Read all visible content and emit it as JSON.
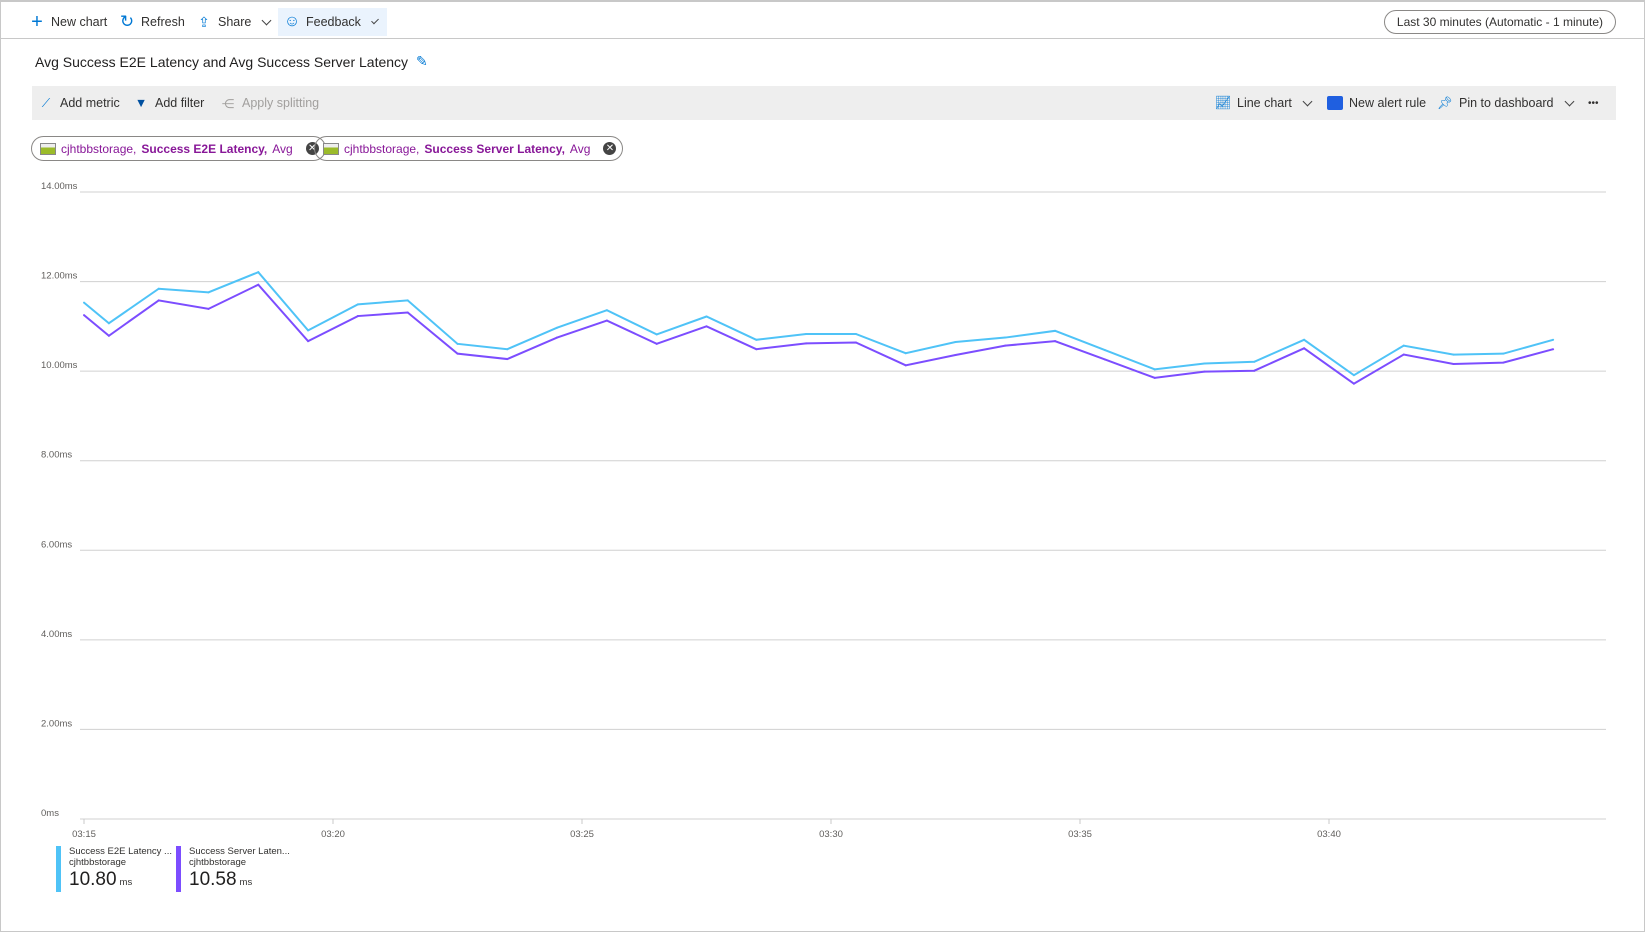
{
  "toolbar": {
    "new_chart": "New chart",
    "refresh": "Refresh",
    "share": "Share",
    "feedback": "Feedback",
    "time_range": "Last 30 minutes (Automatic - 1 minute)"
  },
  "chart_title": "Avg Success E2E Latency and Avg Success Server Latency",
  "command_bar": {
    "add_metric": "Add metric",
    "add_filter": "Add filter",
    "apply_splitting": "Apply splitting",
    "line_chart": "Line chart",
    "new_alert_rule": "New alert rule",
    "pin_to_dashboard": "Pin to dashboard",
    "more": "•••"
  },
  "metric_pills": [
    {
      "resource": "cjhtbbstorage,",
      "metric": "Success E2E Latency,",
      "agg": "Avg"
    },
    {
      "resource": "cjhtbbstorage,",
      "metric": "Success Server Latency,",
      "agg": "Avg"
    }
  ],
  "legend": [
    {
      "name": "Success E2E Latency ...",
      "resource": "cjhtbbstorage",
      "value": "10.80",
      "unit": "ms",
      "color": "#4fc3f7"
    },
    {
      "name": "Success Server Laten...",
      "resource": "cjhtbbstorage",
      "value": "10.58",
      "unit": "ms",
      "color": "#7c4dff"
    }
  ],
  "chart_data": {
    "type": "line",
    "title": "",
    "xlabel": "",
    "ylabel": "",
    "ylim": [
      0,
      14
    ],
    "yticks": [
      "0ms",
      "2.00ms",
      "4.00ms",
      "6.00ms",
      "8.00ms",
      "10.00ms",
      "12.00ms",
      "14.00ms"
    ],
    "xticks": [
      "03:15",
      "03:20",
      "03:25",
      "03:30",
      "03:35",
      "03:40"
    ],
    "grid": true,
    "x": [
      "03:15:00",
      "03:15:30",
      "03:16:30",
      "03:17:30",
      "03:18:30",
      "03:19:30",
      "03:20:30",
      "03:21:30",
      "03:22:30",
      "03:23:30",
      "03:24:30",
      "03:25:30",
      "03:26:30",
      "03:27:30",
      "03:28:30",
      "03:29:30",
      "03:30:30",
      "03:31:30",
      "03:32:30",
      "03:33:30",
      "03:34:30",
      "03:35:30",
      "03:36:30",
      "03:37:30",
      "03:38:30",
      "03:39:30",
      "03:40:30",
      "03:41:30",
      "03:42:30",
      "03:43:30",
      "03:44:30"
    ],
    "series": [
      {
        "name": "Success E2E Latency",
        "color": "#4fc3f7",
        "values": [
          11.53,
          11.07,
          11.84,
          11.76,
          12.21,
          10.91,
          11.49,
          11.58,
          10.61,
          10.49,
          10.97,
          11.36,
          10.82,
          11.22,
          10.7,
          10.83,
          10.83,
          10.4,
          10.65,
          10.75,
          10.9,
          10.47,
          10.04,
          10.17,
          10.21,
          10.7,
          9.91,
          10.57,
          10.37,
          10.39,
          10.7
        ]
      },
      {
        "name": "Success Server Latency",
        "color": "#7c4dff",
        "values": [
          11.25,
          10.79,
          11.58,
          11.39,
          11.93,
          10.67,
          11.23,
          11.31,
          10.39,
          10.27,
          10.75,
          11.13,
          10.61,
          11.0,
          10.49,
          10.62,
          10.64,
          10.13,
          10.36,
          10.57,
          10.67,
          10.26,
          9.85,
          9.99,
          10.01,
          10.51,
          9.72,
          10.37,
          10.16,
          10.19,
          10.49
        ]
      }
    ]
  }
}
